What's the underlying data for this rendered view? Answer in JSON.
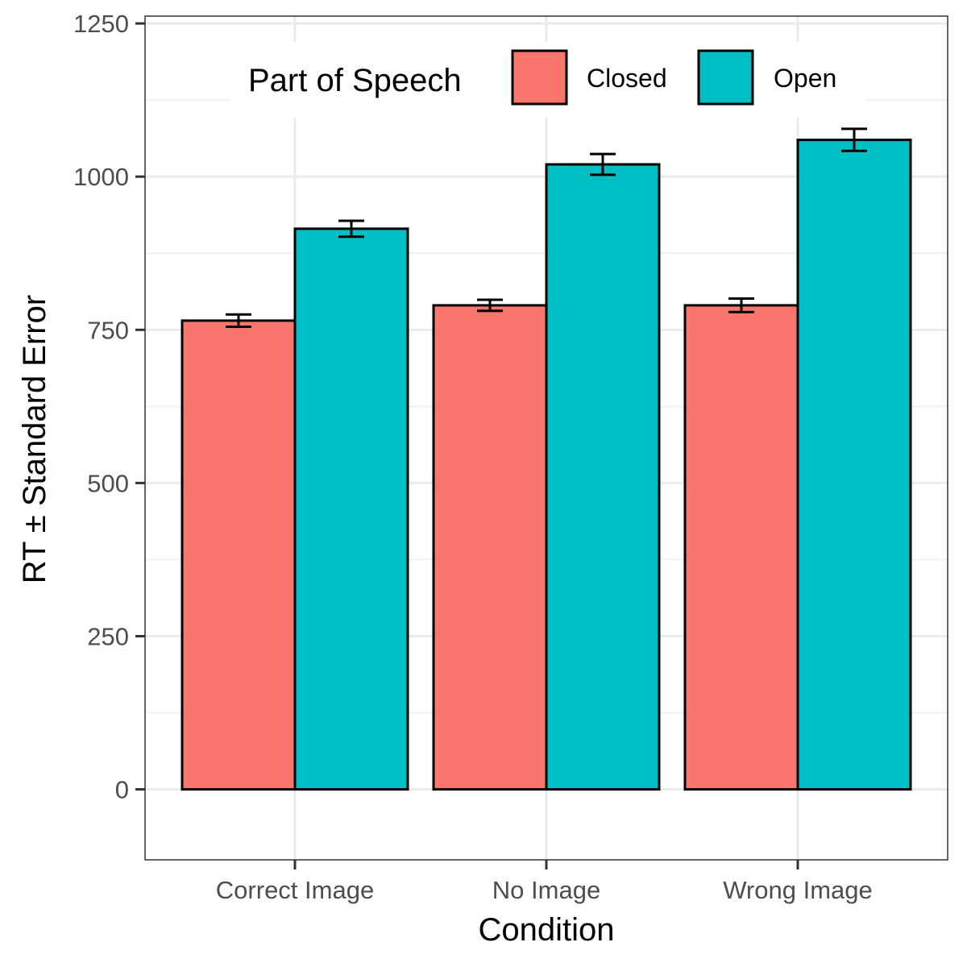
{
  "chart_data": {
    "type": "bar",
    "xlabel": "Condition",
    "ylabel": "RT ± Standard Error",
    "ylim": [
      -115,
      1262
    ],
    "yticks": [
      0,
      250,
      500,
      750,
      1000,
      1250
    ],
    "categories": [
      "Correct Image",
      "No Image",
      "Wrong Image"
    ],
    "series": [
      {
        "name": "Closed",
        "color": "#F8766D",
        "values": [
          765,
          790,
          790
        ],
        "errors": [
          10,
          9,
          11
        ]
      },
      {
        "name": "Open",
        "color": "#00BFC4",
        "values": [
          915,
          1020,
          1060
        ],
        "errors": [
          13,
          17,
          18
        ]
      }
    ],
    "legend": {
      "title": "Part of Speech",
      "position": "top-right"
    },
    "grid": true
  }
}
